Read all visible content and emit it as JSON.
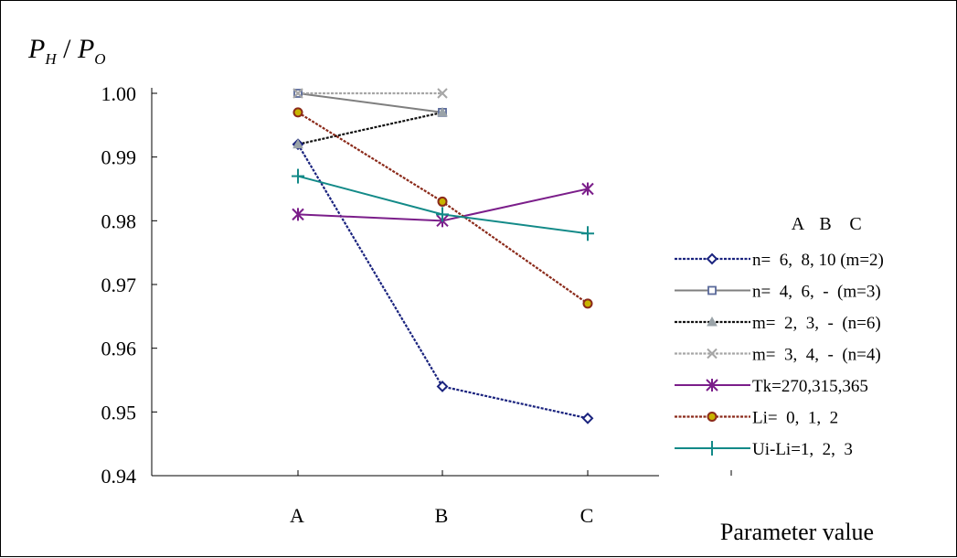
{
  "chart_data": {
    "type": "line",
    "ylabel_main": "P",
    "ylabel_main_sub": "H",
    "ylabel_slash": " / ",
    "ylabel_den": "P",
    "ylabel_den_sub": "O",
    "xlabel": "Parameter value",
    "categories": [
      "A",
      "B",
      "C"
    ],
    "ylim": [
      0.94,
      1.0
    ],
    "yticks": [
      "0.94",
      "0.95",
      "0.96",
      "0.97",
      "0.98",
      "0.99",
      "1.00"
    ],
    "grid": false,
    "legend_header": [
      "A",
      "B",
      "C"
    ],
    "legend_placement": "right",
    "series": [
      {
        "name": "n=  6,  8, 10 (m=2)",
        "values": [
          0.992,
          0.954,
          0.949
        ],
        "color": "#1a237e",
        "dash": "dotted",
        "marker": "diamond"
      },
      {
        "name": "n=  4,  6,  -  (m=3)",
        "values": [
          1.0,
          0.997,
          null
        ],
        "color": "#7f7f7f",
        "dash": "solid",
        "marker": "square"
      },
      {
        "name": "m=  2,  3,  -  (n=6)",
        "values": [
          0.992,
          0.997,
          null
        ],
        "color": "#111111",
        "dash": "dotted",
        "marker": "triangle"
      },
      {
        "name": "m=  3,  4,  -  (n=4)",
        "values": [
          1.0,
          1.0,
          null
        ],
        "color": "#a6a6a6",
        "dash": "dotted",
        "marker": "x"
      },
      {
        "name": "Tk=270,315,365",
        "values": [
          0.981,
          0.98,
          0.985
        ],
        "color": "#7b1e8a",
        "dash": "solid",
        "marker": "star"
      },
      {
        "name": "Li=  0,  1,  2",
        "values": [
          0.997,
          0.983,
          0.967
        ],
        "color": "#8b2a1a",
        "dash": "dotted",
        "marker": "circle"
      },
      {
        "name": "Ui-Li=1,  2,  3",
        "values": [
          0.987,
          0.981,
          0.978
        ],
        "color": "#138a88",
        "dash": "solid",
        "marker": "plus"
      }
    ]
  }
}
